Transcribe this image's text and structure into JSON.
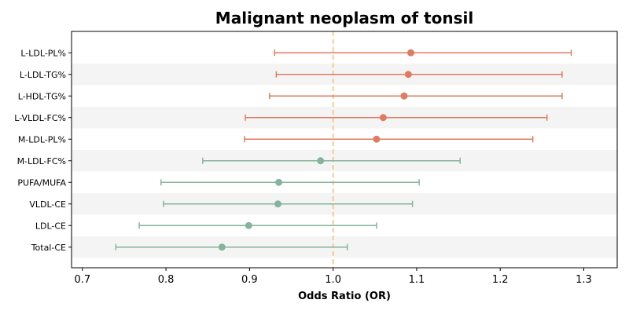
{
  "chart_data": {
    "type": "forest",
    "title": "Malignant neoplasm of tonsil",
    "xlabel": "Odds Ratio (OR)",
    "ylabel": "",
    "xlim": [
      0.687,
      1.34
    ],
    "xticks": [
      0.7,
      0.8,
      0.9,
      1.0,
      1.1,
      1.2,
      1.3
    ],
    "xtick_labels": [
      "0.7",
      "0.8",
      "0.9",
      "1.0",
      "1.1",
      "1.2",
      "1.3"
    ],
    "reference_line": 1.0,
    "grid": false,
    "row_banding": true,
    "colors": {
      "positive": "#e07b5f",
      "negative": "#84b59c",
      "reference": "#f0c27a",
      "band": "#f4f4f4"
    },
    "rows": [
      {
        "label": "L-LDL-PL%",
        "or": 1.093,
        "ci_low": 0.93,
        "ci_high": 1.285,
        "group": "positive"
      },
      {
        "label": "L-LDL-TG%",
        "or": 1.09,
        "ci_low": 0.932,
        "ci_high": 1.274,
        "group": "positive"
      },
      {
        "label": "L-HDL-TG%",
        "or": 1.085,
        "ci_low": 0.924,
        "ci_high": 1.274,
        "group": "positive"
      },
      {
        "label": "L-VLDL-FC%",
        "or": 1.06,
        "ci_low": 0.895,
        "ci_high": 1.256,
        "group": "positive"
      },
      {
        "label": "M-LDL-PL%",
        "or": 1.052,
        "ci_low": 0.894,
        "ci_high": 1.239,
        "group": "positive"
      },
      {
        "label": "M-LDL-FC%",
        "or": 0.985,
        "ci_low": 0.844,
        "ci_high": 1.152,
        "group": "negative"
      },
      {
        "label": "PUFA/MUFA",
        "or": 0.935,
        "ci_low": 0.794,
        "ci_high": 1.103,
        "group": "negative"
      },
      {
        "label": "VLDL-CE",
        "or": 0.934,
        "ci_low": 0.797,
        "ci_high": 1.095,
        "group": "negative"
      },
      {
        "label": "LDL-CE",
        "or": 0.899,
        "ci_low": 0.768,
        "ci_high": 1.052,
        "group": "negative"
      },
      {
        "label": "Total-CE",
        "or": 0.867,
        "ci_low": 0.74,
        "ci_high": 1.017,
        "group": "negative"
      }
    ]
  }
}
